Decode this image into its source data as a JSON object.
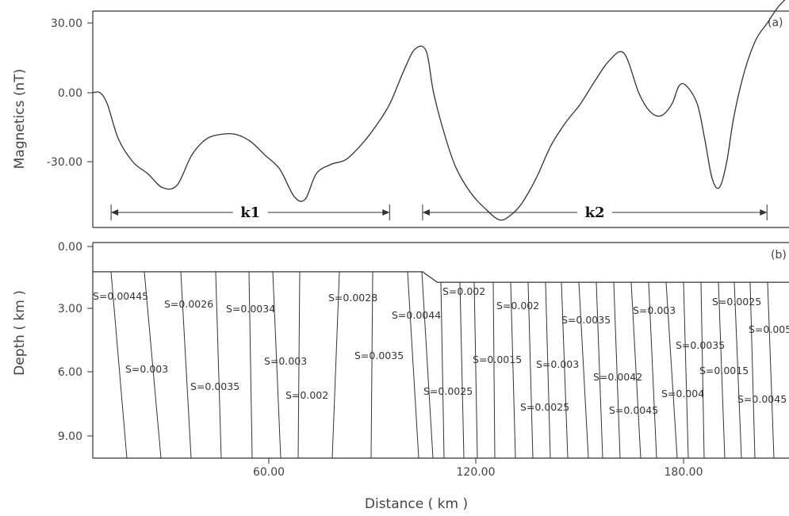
{
  "chart_data": [
    {
      "panel": "(a)",
      "type": "line",
      "ylabel": "Magnetics (nT)",
      "yticks": [
        "30.00",
        "0.00",
        "-30.00"
      ],
      "ylim": [
        -55,
        35
      ],
      "xlim": [
        7,
        197
      ],
      "series": [
        {
          "x": [
            7,
            9,
            11,
            14,
            18,
            22,
            26,
            30,
            34,
            38,
            42,
            46,
            50,
            54,
            58,
            62,
            65,
            68,
            72,
            76,
            80,
            84,
            88,
            92,
            95,
            98,
            100,
            103,
            106,
            110,
            114,
            118,
            121,
            124,
            128,
            132,
            136,
            140,
            144,
            148,
            152,
            156,
            159,
            162,
            165,
            167,
            169,
            172,
            174,
            176,
            178,
            180,
            182,
            185,
            188,
            191,
            194,
            197
          ],
          "y": [
            0,
            0,
            -5,
            -20,
            -30,
            -35,
            -41,
            -40,
            -27,
            -20,
            -18,
            -18,
            -21,
            -27,
            -33,
            -45,
            -46,
            -35,
            -31,
            -29,
            -23,
            -15,
            -5,
            10,
            19,
            18,
            0,
            -18,
            -32,
            -43,
            -50,
            -55,
            -53,
            -48,
            -37,
            -23,
            -13,
            -5,
            5,
            14,
            17,
            0,
            -8,
            -10,
            -5,
            3,
            3,
            -5,
            -20,
            -37,
            -41,
            -30,
            -10,
            10,
            23,
            30,
            37,
            42
          ]
        }
      ],
      "intervals": [
        {
          "label": "k1",
          "x0": 12,
          "x1": 88
        },
        {
          "label": "k2",
          "x0": 97,
          "x1": 191
        }
      ]
    },
    {
      "panel": "(b)",
      "type": "other",
      "xlabel": "Distance ( km )",
      "ylabel": "Depth ( km )",
      "xticks": [
        "60.00",
        "120.00",
        "180.00"
      ],
      "yticks": [
        "0.00",
        "3.00",
        "6.00",
        "9.00"
      ],
      "xlim": [
        7,
        197
      ],
      "ylim": [
        0,
        9.7
      ],
      "interface": {
        "x": [
          7,
          97,
          101,
          197
        ],
        "depth": [
          1.2,
          1.2,
          1.7,
          1.7
        ]
      },
      "s_values": [
        "S=0.00445",
        "S=0.0026",
        "S=0.0034",
        "S=0.0028",
        "S=0.0044",
        "S=0.002",
        "S=0.002",
        "S=0.0035",
        "S=0.003",
        "S=0.0025",
        "S=0.005",
        "S=0.003",
        "S=0.0035",
        "S=0.003",
        "S=0.002",
        "S=0.0035",
        "S=0.0015",
        "S=0.003",
        "S=0.0042",
        "S=0.0035",
        "S=0.0015",
        "S=0.0025",
        "S=0.0025",
        "S=0.0045",
        "S=0.004",
        "S=0.0045"
      ]
    }
  ],
  "panel_labels": {
    "a": "(a)",
    "b": "(b)"
  },
  "axes": {
    "top_ylabel": "Magnetics (nT)",
    "bottom_ylabel": "Depth ( km )",
    "xlabel": "Distance ( km )"
  }
}
